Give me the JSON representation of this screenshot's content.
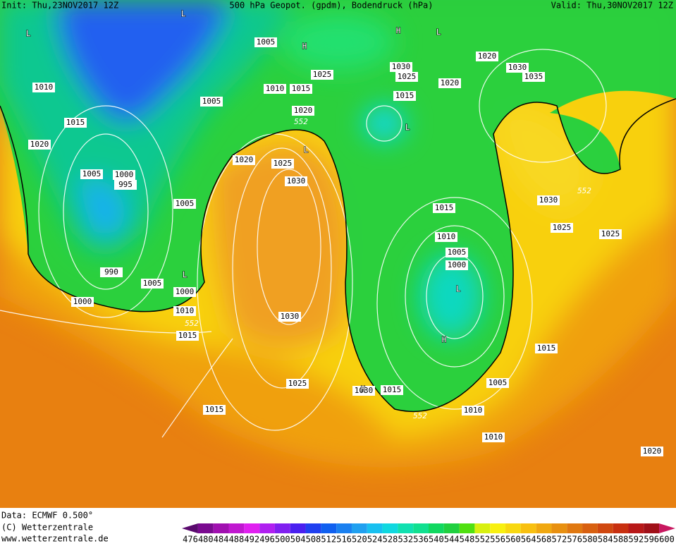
{
  "header": {
    "init": "Init: Thu,23NOV2017 12Z",
    "title": "500 hPa Geopot. (gpdm), Bodendruck (hPa)",
    "valid": "Valid: Thu,30NOV2017 12Z"
  },
  "isobar_labels": [
    "1005",
    "1010",
    "1015",
    "1020",
    "1005",
    "1000",
    "995",
    "1005",
    "990",
    "1005",
    "1000",
    "1000",
    "1010",
    "1015",
    "1005",
    "1010",
    "1015",
    "1025",
    "1020",
    "1020",
    "1025",
    "1030",
    "1030",
    "1025",
    "1015",
    "1030",
    "1025",
    "1020",
    "1020",
    "1015",
    "1030",
    "1035",
    "1030",
    "1025",
    "1025",
    "1015",
    "1010",
    "1005",
    "1000",
    "1015",
    "1005",
    "1010",
    "1010",
    "1020",
    "1015",
    "1030"
  ],
  "contour_labels": [
    "552",
    "552",
    "552",
    "552"
  ],
  "centers": [
    "L",
    "L",
    "H",
    "H",
    "L",
    "L",
    "L",
    "L",
    "L",
    "H",
    "H"
  ],
  "footer": [
    "Data: ECMWF   0.500°",
    "(C) Wetterzentrale",
    "www.wetterzentrale.de"
  ],
  "legend": {
    "ticks": [
      476,
      480,
      484,
      488,
      492,
      496,
      500,
      504,
      508,
      512,
      516,
      520,
      524,
      528,
      532,
      536,
      540,
      544,
      548,
      552,
      556,
      560,
      564,
      568,
      572,
      576,
      580,
      584,
      588,
      592,
      596,
      600
    ],
    "colors": [
      "#5a0a6e",
      "#7a0a90",
      "#a010b0",
      "#c018d0",
      "#e020f0",
      "#b020f0",
      "#8020f0",
      "#4a20f0",
      "#2040f0",
      "#1060f0",
      "#1a80f0",
      "#20a0f0",
      "#18c0f0",
      "#10d8e0",
      "#10e0b0",
      "#10e090",
      "#10d860",
      "#20d040",
      "#50e010",
      "#d8f010",
      "#f8f010",
      "#f8d810",
      "#f8c010",
      "#f0a810",
      "#e89010",
      "#e07810",
      "#d86010",
      "#d04810",
      "#c83010",
      "#b81818",
      "#a01018",
      "#c81860"
    ]
  }
}
